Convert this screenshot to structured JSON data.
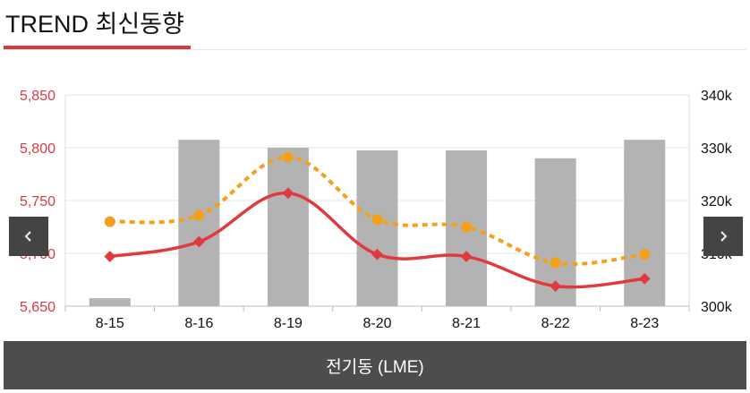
{
  "header": {
    "title": "TREND 최신동향"
  },
  "nav": {
    "prev_icon": "chevron-left-icon",
    "next_icon": "chevron-right-icon"
  },
  "footer": {
    "label": "전기동 (LME)"
  },
  "colors": {
    "accent": "#d8393f",
    "line_primary": "#e03a3e",
    "line_secondary": "#f5a01a",
    "bar": "#b3b3b3",
    "footer_bg": "#4d4d4d"
  },
  "chart_data": {
    "type": "bar",
    "categories": [
      "8-15",
      "8-16",
      "8-19",
      "8-20",
      "8-21",
      "8-22",
      "8-23"
    ],
    "series": [
      {
        "axis": "right",
        "kind": "bar",
        "values": [
          301.5,
          331.5,
          330.0,
          329.5,
          329.5,
          328.0,
          331.5
        ]
      },
      {
        "axis": "left",
        "kind": "line",
        "style": "solid",
        "values": [
          5697,
          5711,
          5757,
          5699,
          5697,
          5669,
          5676
        ]
      },
      {
        "axis": "left",
        "kind": "line",
        "style": "dotted",
        "values": [
          5730,
          5736,
          5791,
          5732,
          5725,
          5691,
          5699
        ]
      }
    ],
    "y_left": {
      "ticks": [
        "5,650",
        "5,700",
        "5,750",
        "5,800",
        "5,850"
      ],
      "ylim": [
        5650,
        5850
      ]
    },
    "y_right": {
      "ticks": [
        "300k",
        "310k",
        "320k",
        "330k",
        "340k"
      ],
      "ylim": [
        300,
        340
      ]
    },
    "grid": true,
    "title": "",
    "xlabel": "",
    "ylabel": ""
  }
}
